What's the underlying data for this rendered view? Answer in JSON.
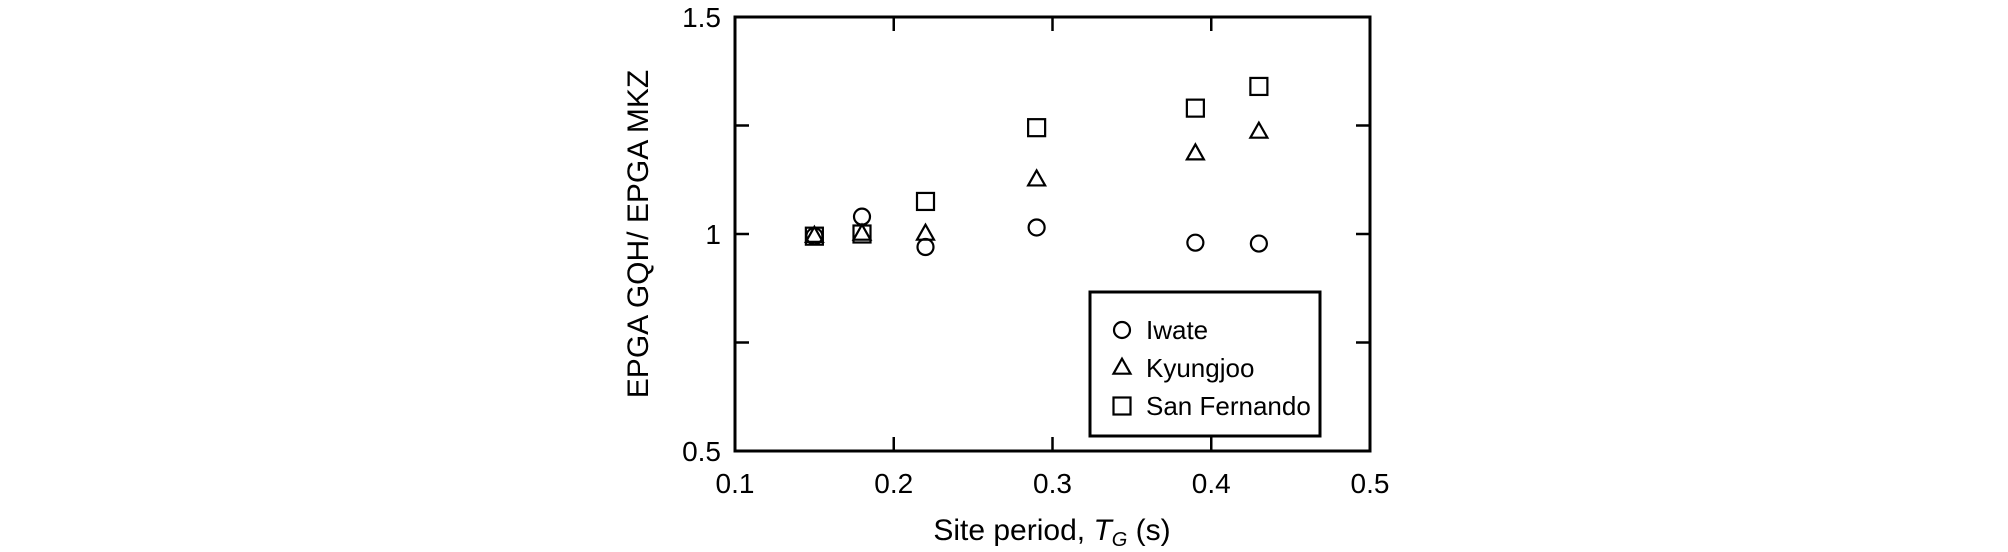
{
  "chart_data": {
    "type": "scatter",
    "title": "",
    "xlabel": "Site period,",
    "xlabel_sym": "T",
    "xlabel_sub": "G",
    "xlabel_unit": "(s)",
    "ylabel": "EPGA GQH/ EPGA MKZ",
    "xlim": [
      0.1,
      0.5
    ],
    "ylim": [
      0.5,
      1.5
    ],
    "xticks": [
      0.1,
      0.2,
      0.3,
      0.4,
      0.5
    ],
    "xtick_labels": [
      "0.1",
      "0.2",
      "0.3",
      "0.4",
      "0.5"
    ],
    "yticks": [
      0.5,
      1.0,
      1.5
    ],
    "ytick_labels": [
      "0.5",
      "1",
      "1.5"
    ],
    "yminor_ticks": [
      0.75,
      1.25
    ],
    "grid": false,
    "legend_position": "bottom-right",
    "series": [
      {
        "name": "Iwate",
        "marker": "circle",
        "x": [
          0.15,
          0.18,
          0.22,
          0.29,
          0.39,
          0.43
        ],
        "y": [
          0.995,
          1.04,
          0.97,
          1.015,
          0.98,
          0.978
        ]
      },
      {
        "name": "Kyungjoo",
        "marker": "triangle",
        "x": [
          0.15,
          0.18,
          0.22,
          0.29,
          0.39,
          0.43
        ],
        "y": [
          0.995,
          1.0,
          1.0,
          1.125,
          1.185,
          1.235
        ]
      },
      {
        "name": "San Fernando",
        "marker": "square",
        "x": [
          0.15,
          0.18,
          0.22,
          0.29,
          0.39,
          0.43
        ],
        "y": [
          0.995,
          1.0,
          1.075,
          1.245,
          1.29,
          1.34
        ]
      }
    ]
  }
}
